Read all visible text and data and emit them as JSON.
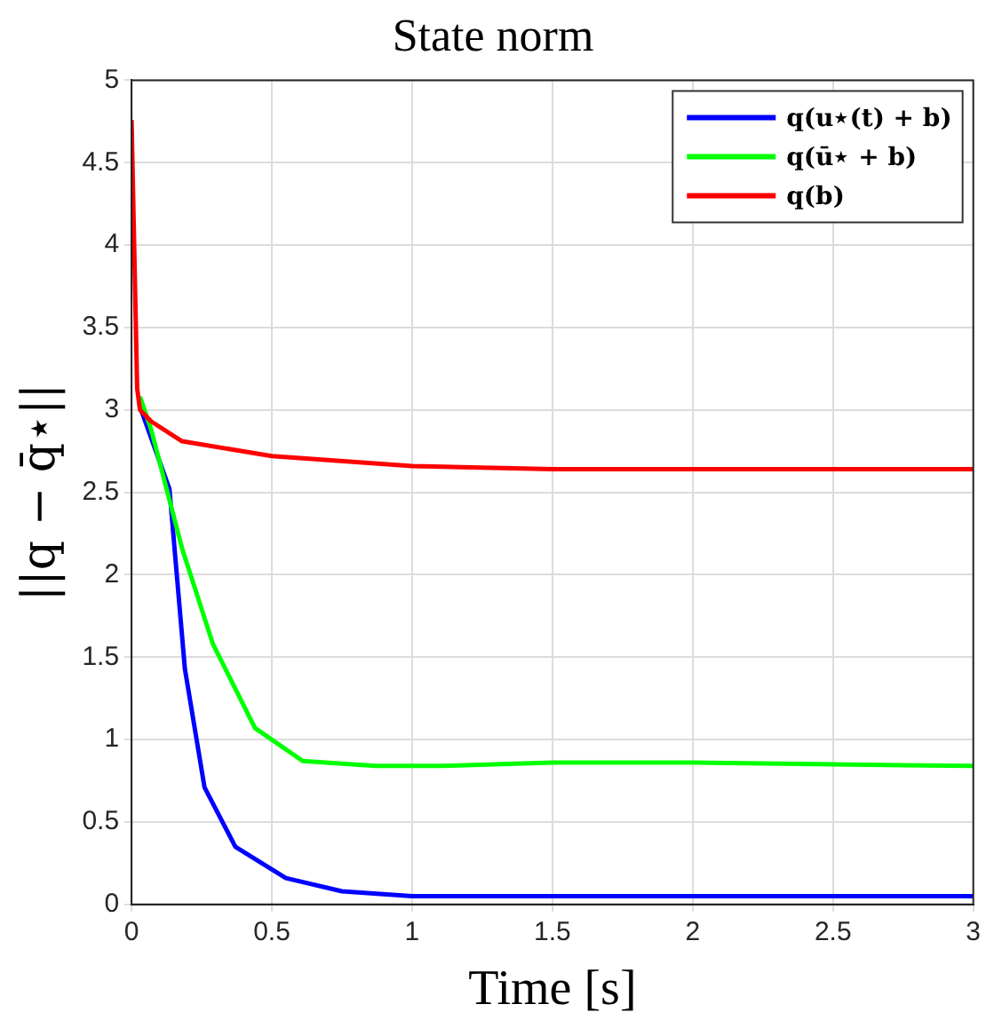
{
  "chart_data": {
    "type": "line",
    "title": "State norm",
    "xlabel": "Time [s]",
    "ylabel": "||q − q̄⋆||",
    "xlim": [
      0,
      3
    ],
    "xticks": [
      0,
      0.5,
      1,
      1.5,
      2,
      2.5,
      3
    ],
    "ylim": [
      0,
      5
    ],
    "yticks": [
      0,
      0.5,
      1,
      1.5,
      2,
      2.5,
      3,
      3.5,
      4,
      4.5,
      5
    ],
    "grid": true,
    "legend": "top right",
    "marker": "none",
    "line_style": "solid",
    "series": [
      {
        "name": "q(u⋆(t) + b)",
        "color": "#0000ff",
        "x": [
          0.03,
          0.135,
          0.19,
          0.26,
          0.37,
          0.55,
          0.75,
          1,
          1.5,
          2,
          3
        ],
        "values": [
          3.02,
          2.52,
          1.43,
          0.71,
          0.35,
          0.16,
          0.08,
          0.05,
          0.05,
          0.05,
          0.05
        ]
      },
      {
        "name": "q(ū⋆ + b)",
        "color": "#00ff00",
        "x": [
          0.03,
          0.07,
          0.18,
          0.29,
          0.44,
          0.61,
          0.87,
          1.1,
          1.5,
          2,
          2.5,
          3
        ],
        "values": [
          3.08,
          2.88,
          2.16,
          1.58,
          1.07,
          0.87,
          0.84,
          0.84,
          0.86,
          0.86,
          0.85,
          0.84
        ]
      },
      {
        "name": "q(b)",
        "color": "#ff0000",
        "x": [
          0,
          0.02,
          0.03,
          0.07,
          0.18,
          0.5,
          1,
          1.5,
          2,
          3
        ],
        "values": [
          4.76,
          3.13,
          3.0,
          2.93,
          2.81,
          2.72,
          2.66,
          2.64,
          2.64,
          2.64
        ]
      }
    ]
  }
}
